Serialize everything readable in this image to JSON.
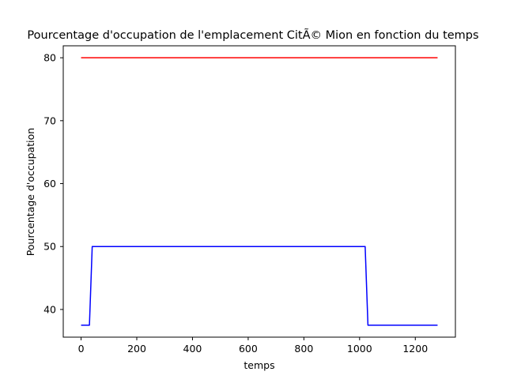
{
  "chart_data": {
    "type": "line",
    "title": "Pourcentage d'occupation de l'emplacement CitÃ© Mion en fonction du temps",
    "xlabel": "temps",
    "ylabel": "Pourcentage d'occupation",
    "xlim": [
      -64,
      1344
    ],
    "ylim": [
      35.6,
      81.9
    ],
    "xticks": [
      0,
      200,
      400,
      600,
      800,
      1000,
      1200
    ],
    "yticks": [
      40,
      50,
      60,
      70,
      80
    ],
    "grid": false,
    "series": [
      {
        "color": "#ff0000",
        "x": [
          0,
          1280
        ],
        "y": [
          80,
          80
        ]
      },
      {
        "color": "#0000ff",
        "x": [
          0,
          30,
          40,
          1020,
          1030,
          1280
        ],
        "y": [
          37.5,
          37.5,
          50,
          50,
          37.5,
          37.5
        ]
      }
    ]
  }
}
